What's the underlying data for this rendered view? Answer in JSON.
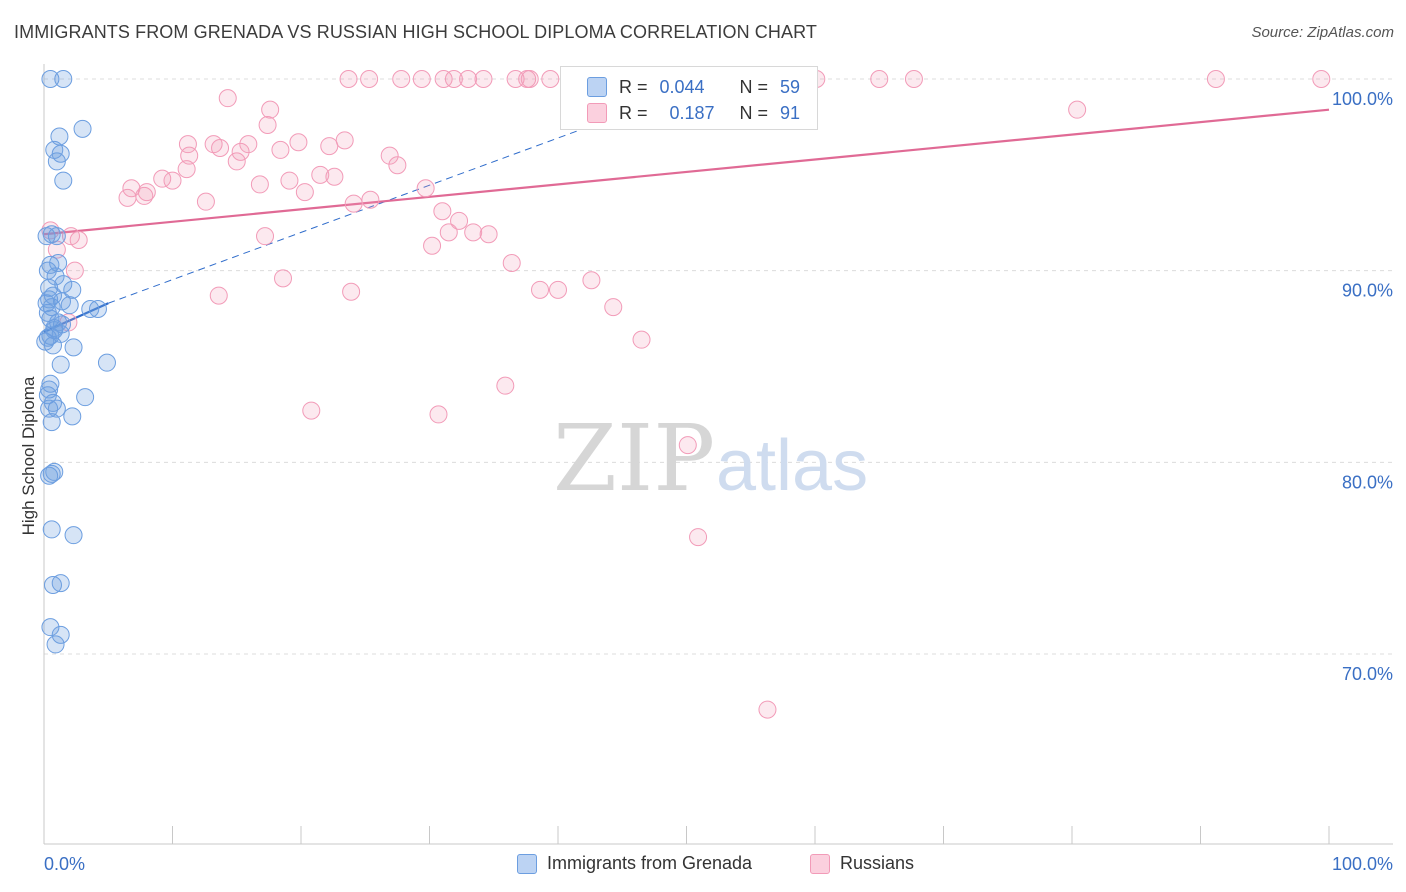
{
  "title": "IMMIGRANTS FROM GRENADA VS RUSSIAN HIGH SCHOOL DIPLOMA CORRELATION CHART",
  "source": "Source: ZipAtlas.com",
  "watermark": {
    "zip": "ZIP",
    "atlas": "atlas"
  },
  "legend": {
    "r_label": "R =",
    "n_label": "N =",
    "rows": [
      {
        "name": "Immigrants from Grenada",
        "r": "0.044",
        "n": "59"
      },
      {
        "name": "Russians",
        "r": "0.187",
        "n": "91"
      }
    ]
  },
  "chart_data": {
    "type": "scatter",
    "title": "IMMIGRANTS FROM GRENADA VS RUSSIAN HIGH SCHOOL DIPLOMA CORRELATION CHART",
    "xlabel": "",
    "ylabel": "High School Diploma",
    "xlim": [
      0,
      105
    ],
    "ylim": [
      59,
      101.5
    ],
    "x_tick_labels": [
      "0.0%",
      "100.0%"
    ],
    "y_ticks": [
      70,
      80,
      90,
      100
    ],
    "y_tick_labels": [
      "70.0%",
      "80.0%",
      "90.0%",
      "100.0%"
    ],
    "grid": true,
    "colors": {
      "grenada": "#6c9ee0",
      "grenada_line": "#2f6ccb",
      "russians": "#f29bb8",
      "russians_line": "#e06a95"
    },
    "series": [
      {
        "name": "Immigrants from Grenada",
        "color": "#6c9ee0",
        "x": [
          0.5,
          1.5,
          1.2,
          3.0,
          0.8,
          1.0,
          1.3,
          0.2,
          0.6,
          1.0,
          1.1,
          0.5,
          0.3,
          0.9,
          1.5,
          2.2,
          0.7,
          0.4,
          1.4,
          2.0,
          4.2,
          0.6,
          0.3,
          0.5,
          1.1,
          1.4,
          0.8,
          1.3,
          0.5,
          0.3,
          0.1,
          0.7,
          1.3,
          2.3,
          4.9,
          0.5,
          0.4,
          0.3,
          0.7,
          0.4,
          3.2,
          0.6,
          1.0,
          2.2,
          0.6,
          0.4,
          0.8,
          0.6,
          2.3,
          0.7,
          1.3,
          0.5,
          1.3,
          0.9,
          0.2,
          0.4,
          0.8,
          3.6,
          1.5
        ],
        "y": [
          100.0,
          100.0,
          97.0,
          97.4,
          96.3,
          95.7,
          96.1,
          91.8,
          91.9,
          91.8,
          90.4,
          90.3,
          90.0,
          89.7,
          89.3,
          89.0,
          88.7,
          88.5,
          88.4,
          88.2,
          88.0,
          88.1,
          87.8,
          87.5,
          87.3,
          87.2,
          86.9,
          86.7,
          86.6,
          86.5,
          86.3,
          86.1,
          85.1,
          86.0,
          85.2,
          84.1,
          83.8,
          83.5,
          83.1,
          82.8,
          83.4,
          82.1,
          82.8,
          82.4,
          79.4,
          79.3,
          79.5,
          76.5,
          76.2,
          73.6,
          73.7,
          71.4,
          71.0,
          70.5,
          88.3,
          89.1,
          87.0,
          88.0,
          94.7
        ]
      },
      {
        "name": "Russians",
        "color": "#f29bb8",
        "x": [
          23.7,
          25.3,
          27.8,
          29.4,
          31.1,
          31.9,
          33.0,
          34.2,
          36.7,
          37.6,
          37.8,
          39.4,
          41.2,
          41.9,
          42.6,
          42.9,
          43.3,
          46.4,
          47.0,
          49.3,
          50.5,
          53.5,
          55.4,
          57.0,
          58.0,
          60.1,
          65.0,
          67.7,
          80.4,
          91.2,
          99.4,
          17.6,
          14.3,
          6.8,
          6.5,
          8.0,
          9.2,
          10.0,
          11.1,
          11.3,
          12.6,
          13.2,
          13.7,
          15.0,
          15.3,
          15.9,
          16.8,
          17.4,
          18.4,
          19.1,
          19.8,
          20.3,
          21.5,
          22.2,
          22.6,
          23.4,
          24.1,
          25.4,
          26.9,
          27.5,
          29.7,
          30.2,
          31.0,
          31.5,
          32.3,
          33.4,
          34.6,
          36.4,
          38.6,
          40.0,
          42.6,
          44.3,
          46.5,
          50.1,
          50.9,
          56.3,
          17.2,
          11.2,
          7.8,
          18.6,
          2.1,
          2.7,
          1.0,
          0.5,
          2.4,
          1.9,
          13.6,
          20.8,
          30.7,
          35.9,
          23.9
        ],
        "y": [
          100.0,
          100.0,
          100.0,
          100.0,
          100.0,
          100.0,
          100.0,
          100.0,
          100.0,
          100.0,
          100.0,
          100.0,
          100.0,
          100.0,
          100.0,
          100.0,
          100.0,
          100.0,
          100.0,
          100.0,
          100.0,
          100.0,
          100.0,
          100.0,
          100.0,
          100.0,
          100.0,
          100.0,
          98.4,
          100.0,
          100.0,
          98.4,
          99.0,
          94.3,
          93.8,
          94.1,
          94.8,
          94.7,
          95.3,
          96.0,
          93.6,
          96.6,
          96.4,
          95.7,
          96.2,
          96.6,
          94.5,
          97.6,
          96.3,
          94.7,
          96.7,
          94.1,
          95.0,
          96.5,
          94.9,
          96.8,
          93.5,
          93.7,
          96.0,
          95.5,
          94.3,
          91.3,
          93.1,
          92.0,
          92.6,
          92.0,
          91.9,
          90.4,
          89.0,
          89.0,
          89.5,
          88.1,
          86.4,
          80.9,
          76.1,
          67.1,
          91.8,
          96.6,
          93.9,
          89.6,
          91.8,
          91.6,
          91.1,
          92.1,
          90.0,
          87.3,
          88.7,
          82.7,
          82.5,
          84.0,
          88.9
        ]
      }
    ],
    "trendlines": [
      {
        "series": "Immigrants from Grenada",
        "style": "solid",
        "x": [
          0,
          5
        ],
        "y": [
          86.8,
          88.3
        ]
      },
      {
        "series": "Immigrants from Grenada",
        "style": "dashed",
        "x": [
          5,
          52.5
        ],
        "y": [
          88.3,
          100.0
        ]
      },
      {
        "series": "Russians",
        "style": "solid",
        "x": [
          0,
          100
        ],
        "y": [
          91.9,
          98.4
        ]
      }
    ]
  }
}
